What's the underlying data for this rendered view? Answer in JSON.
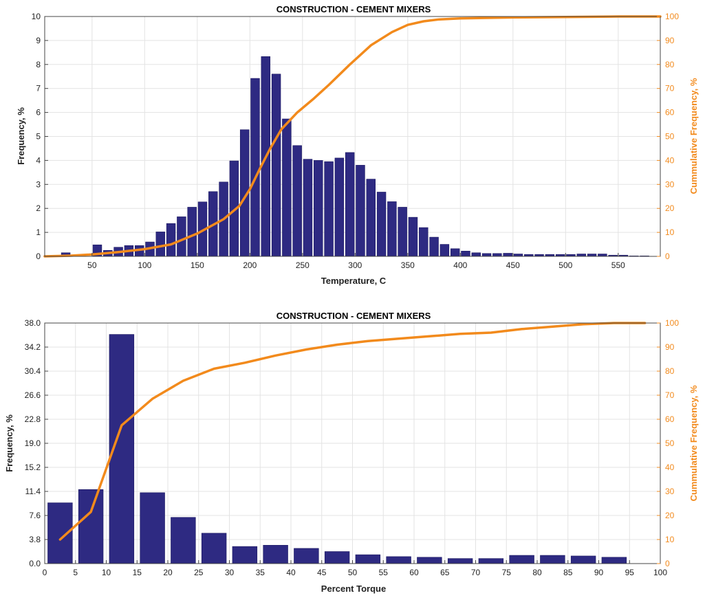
{
  "chart_data": [
    {
      "type": "bar",
      "title": "CONSTRUCTION - CEMENT MIXERS",
      "xlabel": "Temperature, C",
      "ylabel": "Frequency, %",
      "y2label": "Cummulative Frequency, %",
      "xlim": [
        5,
        590
      ],
      "ylim": [
        0,
        10
      ],
      "y2lim": [
        0,
        100
      ],
      "grid": true,
      "bar_width": 8.4,
      "x_ticks": [
        50,
        100,
        150,
        200,
        250,
        300,
        350,
        400,
        450,
        500,
        550
      ],
      "y_ticks": [
        "0",
        "1",
        "2",
        "3",
        "4",
        "5",
        "6",
        "7",
        "8",
        "9",
        "10"
      ],
      "y2_ticks": [
        "0",
        "10",
        "20",
        "30",
        "40",
        "50",
        "60",
        "70",
        "80",
        "90",
        "100"
      ],
      "colors": {
        "bars": "#2E2A82",
        "cumulative": "#F28A1C"
      },
      "series": [
        {
          "x": [
            25,
            55,
            65,
            75,
            85,
            95,
            105,
            115,
            125,
            135,
            145,
            155,
            165,
            175,
            185,
            195,
            205,
            215,
            225,
            235,
            245,
            255,
            265,
            275,
            285,
            295,
            305,
            315,
            325,
            335,
            345,
            355,
            365,
            375,
            385,
            395,
            405,
            415,
            425,
            435,
            445,
            455,
            465,
            475,
            485,
            495,
            505,
            515,
            525,
            535,
            545,
            555,
            565,
            575
          ],
          "values": [
            0.15,
            0.48,
            0.25,
            0.38,
            0.45,
            0.45,
            0.6,
            1.02,
            1.37,
            1.65,
            2.05,
            2.27,
            2.7,
            3.1,
            3.98,
            5.28,
            7.42,
            8.33,
            7.6,
            5.73,
            4.62,
            4.05,
            4.0,
            3.95,
            4.1,
            4.33,
            3.8,
            3.22,
            2.68,
            2.28,
            2.05,
            1.63,
            1.2,
            0.8,
            0.5,
            0.32,
            0.22,
            0.15,
            0.12,
            0.12,
            0.13,
            0.1,
            0.08,
            0.08,
            0.08,
            0.08,
            0.08,
            0.1,
            0.1,
            0.1,
            0.05,
            0.05,
            0.02,
            0.02
          ]
        },
        {
          "x": [
            5,
            30,
            50,
            75,
            100,
            125,
            150,
            175,
            190,
            200,
            210,
            220,
            230,
            245,
            260,
            275,
            295,
            315,
            335,
            350,
            365,
            380,
            400,
            450,
            500,
            550,
            590
          ],
          "values": [
            0,
            0.3,
            0.8,
            1.8,
            3,
            5,
            9.5,
            15.5,
            21,
            28,
            37,
            45.5,
            53,
            60,
            65.5,
            71.5,
            80,
            88,
            93.5,
            96.5,
            98,
            98.8,
            99.2,
            99.6,
            99.8,
            100,
            100
          ]
        }
      ]
    },
    {
      "type": "bar",
      "title": "CONSTRUCTION - CEMENT MIXERS",
      "xlabel": "Percent Torque",
      "ylabel": "Frequency, %",
      "y2label": "Cummulative Frequency, %",
      "xlim": [
        0,
        100
      ],
      "ylim": [
        0,
        38
      ],
      "y2lim": [
        0,
        100
      ],
      "grid": true,
      "bar_width": 4,
      "x_ticks": [
        0,
        5,
        10,
        15,
        20,
        25,
        30,
        35,
        40,
        45,
        50,
        55,
        60,
        65,
        70,
        75,
        80,
        85,
        90,
        95,
        100
      ],
      "y_ticks": [
        "0.0",
        "3.8",
        "7.6",
        "11.4",
        "15.2",
        "19.0",
        "22.8",
        "26.6",
        "30.4",
        "34.2",
        "38.0"
      ],
      "y2_ticks": [
        "0",
        "10",
        "20",
        "30",
        "40",
        "50",
        "60",
        "70",
        "80",
        "90",
        "100"
      ],
      "colors": {
        "bars": "#2E2A82",
        "cumulative": "#F28A1C"
      },
      "series": [
        {
          "x": [
            2.5,
            7.5,
            12.5,
            17.5,
            22.5,
            27.5,
            32.5,
            37.5,
            42.5,
            47.5,
            52.5,
            57.5,
            62.5,
            67.5,
            72.5,
            77.5,
            82.5,
            87.5,
            92.5
          ],
          "values": [
            9.6,
            11.7,
            36.2,
            11.2,
            7.3,
            4.8,
            2.7,
            2.9,
            2.4,
            1.9,
            1.4,
            1.1,
            1.0,
            0.8,
            0.8,
            1.3,
            1.3,
            1.2,
            1.0
          ]
        },
        {
          "x": [
            2.5,
            7.5,
            12.5,
            17.5,
            22.5,
            27.5,
            32.5,
            37.5,
            42.5,
            47.5,
            52.5,
            57.5,
            62.5,
            67.5,
            72.5,
            77.5,
            82.5,
            87.5,
            92.5,
            97.5
          ],
          "values": [
            10,
            21.5,
            57.5,
            68.5,
            76,
            81,
            83.5,
            86.5,
            89,
            91,
            92.5,
            93.5,
            94.5,
            95.5,
            96,
            97.5,
            98.5,
            99.5,
            100,
            100
          ]
        }
      ]
    }
  ]
}
